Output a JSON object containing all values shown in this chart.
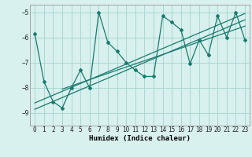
{
  "x_data": [
    0,
    1,
    2,
    3,
    4,
    5,
    6,
    7,
    8,
    9,
    10,
    11,
    12,
    13,
    14,
    15,
    16,
    17,
    18,
    19,
    20,
    21,
    22,
    23
  ],
  "y_data": [
    -5.85,
    -7.75,
    -8.55,
    -8.8,
    -8.0,
    -7.3,
    -8.0,
    -5.0,
    -6.2,
    -6.55,
    -7.0,
    -7.3,
    -7.55,
    -7.55,
    -5.15,
    -5.4,
    -5.7,
    -7.05,
    -6.1,
    -6.7,
    -5.15,
    -6.0,
    -5.0,
    -6.1
  ],
  "trend1_x": [
    0,
    23
  ],
  "trend1_y": [
    -8.6,
    -5.05
  ],
  "trend2_x": [
    0,
    23
  ],
  "trend2_y": [
    -8.85,
    -5.3
  ],
  "trend3_x": [
    3,
    23
  ],
  "trend3_y": [
    -8.05,
    -5.55
  ],
  "color": "#1a7a6e",
  "bg_color": "#d8f0ee",
  "grid_color": "#aad8d4",
  "xlabel": "Humidex (Indice chaleur)",
  "xlim": [
    -0.5,
    23.5
  ],
  "ylim": [
    -9.5,
    -4.7
  ],
  "yticks": [
    -9,
    -8,
    -7,
    -6,
    -5
  ],
  "xticks": [
    0,
    1,
    2,
    3,
    4,
    5,
    6,
    7,
    8,
    9,
    10,
    11,
    12,
    13,
    14,
    15,
    16,
    17,
    18,
    19,
    20,
    21,
    22,
    23
  ]
}
